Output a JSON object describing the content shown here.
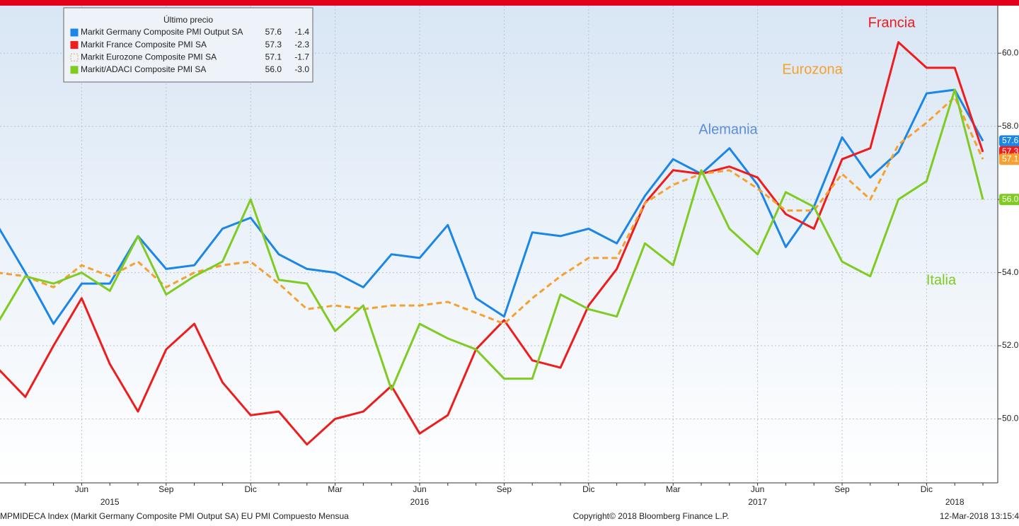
{
  "chart_data": {
    "type": "line",
    "legend_title": "Último precio",
    "categories": [
      null,
      null,
      null,
      "Jun",
      null,
      null,
      "Sep",
      null,
      null,
      "Dic",
      null,
      null,
      "Mar",
      null,
      null,
      "Jun",
      null,
      null,
      "Sep",
      null,
      null,
      "Dic",
      null,
      null,
      "Mar",
      null,
      null,
      "Jun",
      null,
      null,
      "Sep",
      null,
      null,
      "Dic",
      null,
      null
    ],
    "years": [
      null,
      null,
      null,
      null,
      "2015",
      null,
      null,
      null,
      null,
      null,
      null,
      null,
      null,
      null,
      null,
      "2016",
      null,
      null,
      null,
      null,
      null,
      null,
      null,
      null,
      null,
      null,
      null,
      "2017",
      null,
      null,
      null,
      null,
      null,
      null,
      "2018",
      null
    ],
    "ylim": [
      48.25,
      61.3
    ],
    "yticks": [
      {
        "value": 50,
        "label": "50.0"
      },
      {
        "value": 52,
        "label": "52.0"
      },
      {
        "value": 54,
        "label": "54.0"
      },
      {
        "value": 56,
        "label": "56.0"
      },
      {
        "value": 58,
        "label": "58.0"
      },
      {
        "value": 60,
        "label": "60.0"
      }
    ],
    "grid": true,
    "series": [
      {
        "name": "Markit Germany Composite PMI Output SA",
        "color": "#1a86e8",
        "last_label": "57.6",
        "change": "-1.4",
        "values": [
          55.3,
          54.0,
          52.6,
          53.7,
          53.7,
          55.0,
          54.1,
          54.2,
          55.2,
          55.5,
          54.5,
          54.1,
          54.0,
          53.6,
          54.5,
          54.4,
          55.3,
          53.3,
          52.8,
          55.1,
          55.0,
          55.2,
          54.8,
          56.1,
          57.1,
          56.7,
          57.4,
          56.4,
          54.7,
          55.8,
          57.7,
          56.6,
          57.3,
          58.9,
          59.0,
          57.6
        ]
      },
      {
        "name": "Markit France Composite PMI SA",
        "color": "#ee1c1c",
        "last_label": "57.3",
        "change": "-2.3",
        "values": [
          51.4,
          50.6,
          52.0,
          53.3,
          51.5,
          50.2,
          51.9,
          52.6,
          51.0,
          50.1,
          50.2,
          49.3,
          50.0,
          50.2,
          50.9,
          49.6,
          50.1,
          51.9,
          52.7,
          51.6,
          51.4,
          53.1,
          54.1,
          55.9,
          56.8,
          56.7,
          56.9,
          56.6,
          55.6,
          55.2,
          57.1,
          57.4,
          60.3,
          59.6,
          59.6,
          57.3
        ]
      },
      {
        "name": "Markit Eurozone Composite PMI SA",
        "color": "#f5a030",
        "dashed": true,
        "last_label": "57.1",
        "change": "-1.7",
        "values": [
          54.0,
          53.9,
          53.6,
          54.2,
          53.9,
          54.3,
          53.6,
          54.0,
          54.2,
          54.3,
          53.7,
          53.0,
          53.1,
          53.0,
          53.1,
          53.1,
          53.2,
          52.9,
          52.6,
          53.3,
          53.9,
          54.4,
          54.4,
          55.9,
          56.4,
          56.7,
          56.8,
          56.3,
          55.7,
          55.7,
          56.7,
          56.0,
          57.5,
          58.1,
          58.8,
          57.1
        ]
      },
      {
        "name": "Markit/ADACI Composite PMI SA",
        "color": "#7fcb22",
        "last_label": "56.0",
        "change": "-3.0",
        "values": [
          52.6,
          53.9,
          53.7,
          54.0,
          53.5,
          55.0,
          53.4,
          53.9,
          54.3,
          56.0,
          53.8,
          53.7,
          52.4,
          53.1,
          50.8,
          52.6,
          52.2,
          51.9,
          51.1,
          51.1,
          53.4,
          53.0,
          52.8,
          54.8,
          54.2,
          56.8,
          55.2,
          54.5,
          56.2,
          55.8,
          54.3,
          53.9,
          56.0,
          56.5,
          59.0,
          56.0
        ]
      }
    ],
    "annotations": [
      {
        "text": "Francia",
        "color": "#ee1c1c"
      },
      {
        "text": "Eurozona",
        "color": "#f5a030"
      },
      {
        "text": "Alemania",
        "color": "#5b8fd6"
      },
      {
        "text": "Italia",
        "color": "#7fcb22"
      }
    ],
    "footer_left": "MPMIDECA Index (Markit Germany Composite PMI Output SA) EU PMI Compuesto  Mensua",
    "footer_center": "Copyright© 2018 Bloomberg Finance L.P.",
    "footer_right": "12-Mar-2018 13:15:4"
  }
}
